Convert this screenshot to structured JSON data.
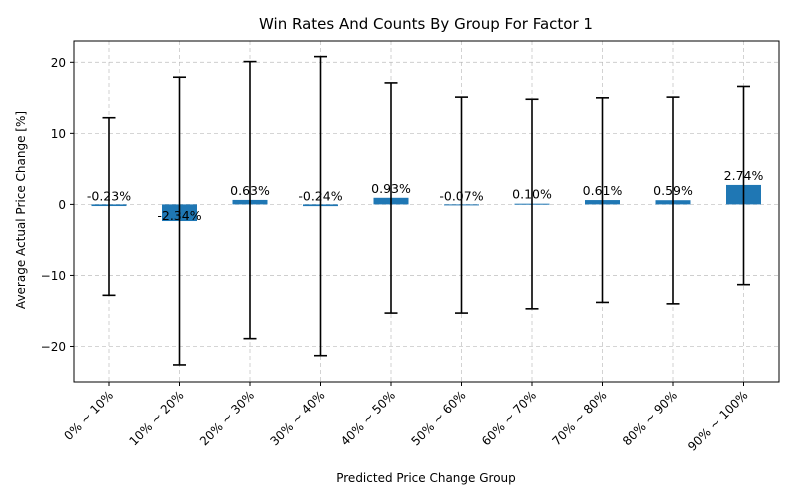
{
  "chart_data": {
    "type": "bar",
    "title": "Win Rates And Counts By Group For Factor 1",
    "xlabel": "Predicted Price Change Group",
    "ylabel": "Average Actual Price Change [%]",
    "categories": [
      "0% ~ 10%",
      "10% ~ 20%",
      "20% ~ 30%",
      "30% ~ 40%",
      "40% ~ 50%",
      "50% ~ 60%",
      "60% ~ 70%",
      "70% ~ 80%",
      "80% ~ 90%",
      "90% ~ 100%"
    ],
    "values": [
      -0.23,
      -2.34,
      0.63,
      -0.24,
      0.93,
      -0.07,
      0.1,
      0.61,
      0.59,
      2.74
    ],
    "value_labels": [
      "-0.23%",
      "-2.34%",
      "0.63%",
      "-0.24%",
      "0.93%",
      "-0.07%",
      "0.10%",
      "0.61%",
      "0.59%",
      "2.74%"
    ],
    "error_bars": {
      "upper": [
        12.2,
        17.9,
        20.1,
        20.8,
        17.1,
        15.1,
        14.8,
        15.0,
        15.1,
        16.6
      ],
      "lower": [
        -12.8,
        -22.6,
        -18.9,
        -21.3,
        -15.3,
        -15.3,
        -14.7,
        -13.8,
        -14.0,
        -11.3
      ]
    },
    "ylim": [
      -25,
      23
    ],
    "yticks": [
      -20,
      -10,
      0,
      10,
      20
    ],
    "ytick_labels": [
      "−20",
      "−10",
      "0",
      "10",
      "20"
    ],
    "grid": "horizontal dashed",
    "bar_color": "#1f77b4",
    "error_color": "#000000"
  }
}
